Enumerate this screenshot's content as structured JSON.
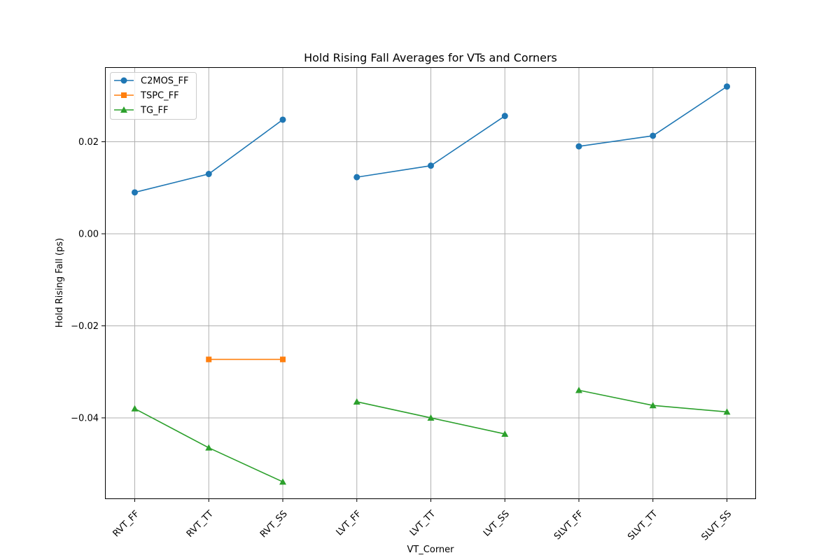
{
  "chart_data": {
    "type": "line",
    "title": "Hold Rising Fall Averages for VTs and Corners",
    "xlabel": "VT_Corner",
    "ylabel": "Hold Rising Fall (ps)",
    "categories": [
      "RVT_FF",
      "RVT_TT",
      "RVT_SS",
      "LVT_FF",
      "LVT_TT",
      "LVT_SS",
      "SLVT_FF",
      "SLVT_TT",
      "SLVT_SS"
    ],
    "yticks": [
      "0.02",
      "0.00",
      "−0.02",
      "−0.04"
    ],
    "ylim": [
      -0.0575,
      0.0362
    ],
    "grid": true,
    "legend_position": "top-left",
    "series": [
      {
        "name": "C2MOS_FF",
        "color": "#1f77b4",
        "marker": "circle",
        "segments": [
          [
            [
              0,
              0.009
            ],
            [
              1,
              0.013
            ],
            [
              2,
              0.0248
            ]
          ],
          [
            [
              3,
              0.0123
            ],
            [
              4,
              0.0148
            ],
            [
              5,
              0.0256
            ]
          ],
          [
            [
              6,
              0.019
            ],
            [
              7,
              0.0213
            ],
            [
              8,
              0.032
            ]
          ]
        ]
      },
      {
        "name": "TSPC_FF",
        "color": "#ff7f0e",
        "marker": "square",
        "segments": [
          [
            [
              1,
              -0.0273
            ],
            [
              2,
              -0.0273
            ]
          ]
        ]
      },
      {
        "name": "TG_FF",
        "color": "#2ca02c",
        "marker": "triangle",
        "segments": [
          [
            [
              0,
              -0.038
            ],
            [
              1,
              -0.0465
            ],
            [
              2,
              -0.0539
            ]
          ],
          [
            [
              3,
              -0.0365
            ],
            [
              4,
              -0.04
            ],
            [
              5,
              -0.0435
            ]
          ],
          [
            [
              6,
              -0.034
            ],
            [
              7,
              -0.0373
            ],
            [
              8,
              -0.0387
            ]
          ]
        ]
      }
    ]
  }
}
